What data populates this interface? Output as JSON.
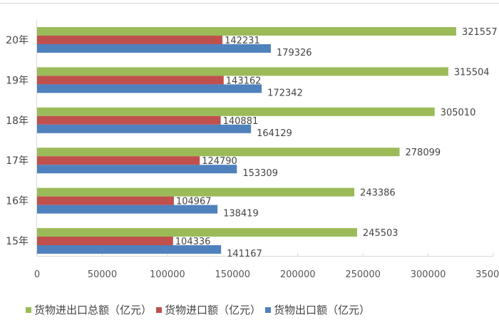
{
  "chart_data": {
    "type": "bar",
    "orientation": "horizontal",
    "categories": [
      "20年",
      "19年",
      "18年",
      "17年",
      "16年",
      "15年"
    ],
    "series": [
      {
        "name": "货物进出口总额（亿元）",
        "color": "#9bbb59",
        "values": [
          321557,
          315504,
          305010,
          278099,
          243386,
          245503
        ]
      },
      {
        "name": "货物进口额（亿元）",
        "color": "#c0504d",
        "values": [
          142231,
          143162,
          140881,
          124790,
          104967,
          104336
        ]
      },
      {
        "name": "货物出口额（亿元）",
        "color": "#4f81bd",
        "values": [
          179326,
          172342,
          164129,
          153309,
          138419,
          141167
        ]
      }
    ],
    "xlim": [
      0,
      350000
    ],
    "xticks": [
      "0",
      "50000",
      "100000",
      "150000",
      "200000",
      "250000",
      "300000",
      "350000"
    ],
    "grid": false,
    "data_labels": true,
    "legend_position": "bottom"
  }
}
